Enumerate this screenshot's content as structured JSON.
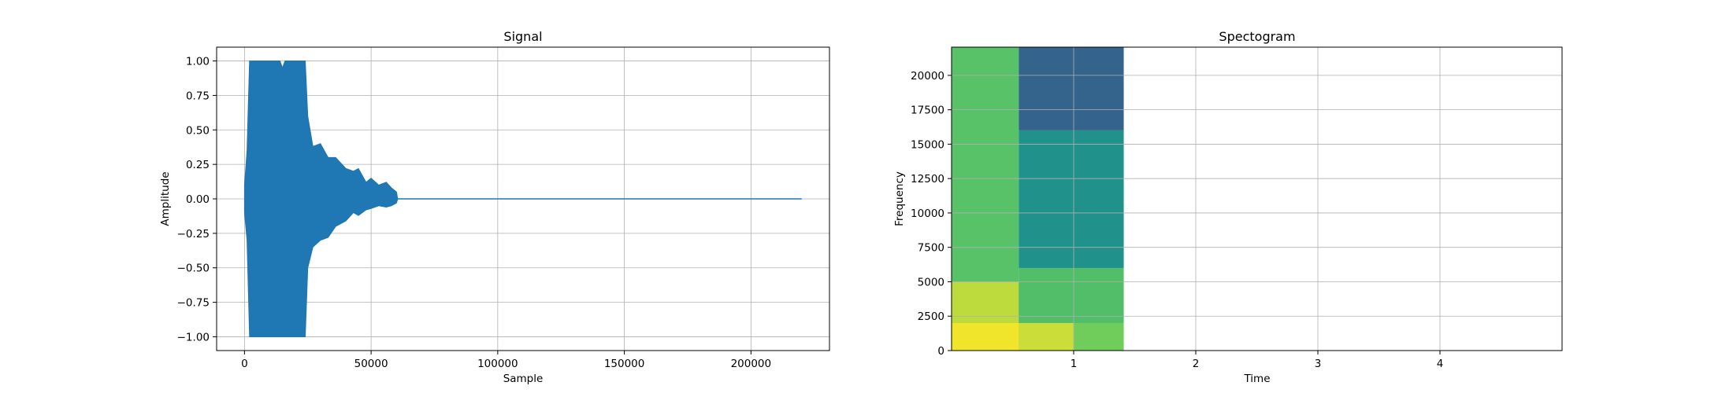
{
  "chart_data": [
    {
      "type": "line",
      "title": "Signal",
      "xlabel": "Sample",
      "ylabel": "Amplitude",
      "xlim": [
        -11000,
        231000
      ],
      "ylim": [
        -1.1,
        1.1
      ],
      "xticks": [
        0,
        50000,
        100000,
        150000,
        200000
      ],
      "xtick_labels": [
        "0",
        "50000",
        "100000",
        "150000",
        "200000"
      ],
      "yticks": [
        -1.0,
        -0.75,
        -0.5,
        -0.25,
        0.0,
        0.25,
        0.5,
        0.75,
        1.0
      ],
      "ytick_labels": [
        "−1.00",
        "−0.75",
        "−0.50",
        "−0.25",
        "0.00",
        "0.25",
        "0.50",
        "0.75",
        "1.00"
      ],
      "grid": true,
      "color": "#1f77b4",
      "series": [
        {
          "x": [
            0,
            1000,
            2000,
            5000,
            10000,
            14000,
            15000,
            16000,
            20000,
            24000,
            25000,
            27000,
            30000,
            33000,
            36000,
            40000,
            43000,
            45000,
            48000,
            50000,
            53000,
            56000,
            58000,
            60000,
            60500,
            100000,
            150000,
            200000,
            220000
          ],
          "upper": [
            0.1,
            0.35,
            1.0,
            1.0,
            1.0,
            1.0,
            0.95,
            1.0,
            1.0,
            1.0,
            0.6,
            0.38,
            0.4,
            0.3,
            0.3,
            0.22,
            0.2,
            0.22,
            0.12,
            0.15,
            0.1,
            0.12,
            0.08,
            0.05,
            0.0,
            0.0,
            0.0,
            0.0,
            0.0
          ],
          "lower": [
            -0.1,
            -0.3,
            -1.0,
            -1.0,
            -1.0,
            -1.0,
            -1.0,
            -1.0,
            -1.0,
            -1.0,
            -0.5,
            -0.35,
            -0.3,
            -0.28,
            -0.2,
            -0.16,
            -0.1,
            -0.12,
            -0.08,
            -0.07,
            -0.05,
            -0.06,
            -0.05,
            -0.03,
            0.0,
            0.0,
            0.0,
            0.0,
            0.0
          ]
        }
      ]
    },
    {
      "type": "heatmap",
      "title": "Spectogram",
      "xlabel": "Time",
      "ylabel": "Frequency",
      "xlim": [
        0,
        5.0
      ],
      "ylim": [
        0,
        22050
      ],
      "xticks": [
        1,
        2,
        3,
        4
      ],
      "xtick_labels": [
        "1",
        "2",
        "3",
        "4"
      ],
      "yticks": [
        0,
        2500,
        5000,
        7500,
        10000,
        12500,
        15000,
        17500,
        20000
      ],
      "ytick_labels": [
        "0",
        "2500",
        "5000",
        "7500",
        "10000",
        "12500",
        "15000",
        "17500",
        "20000"
      ],
      "grid": true,
      "colormap": "viridis",
      "data_extent_time": [
        0,
        1.41
      ],
      "regions": [
        {
          "t0": 0.0,
          "t1": 0.55,
          "f0": 0,
          "f1": 22050,
          "level": 0.72
        },
        {
          "t0": 0.0,
          "t1": 0.55,
          "f0": 0,
          "f1": 5000,
          "level": 0.9
        },
        {
          "t0": 0.0,
          "t1": 0.55,
          "f0": 0,
          "f1": 2000,
          "level": 0.98
        },
        {
          "t0": 0.55,
          "t1": 1.41,
          "f0": 16000,
          "f1": 22050,
          "level": 0.32
        },
        {
          "t0": 0.55,
          "t1": 1.41,
          "f0": 6000,
          "f1": 16000,
          "level": 0.5
        },
        {
          "t0": 0.55,
          "t1": 1.41,
          "f0": 2000,
          "f1": 6000,
          "level": 0.7
        },
        {
          "t0": 0.55,
          "t1": 1.0,
          "f0": 0,
          "f1": 2000,
          "level": 0.92
        },
        {
          "t0": 1.0,
          "t1": 1.41,
          "f0": 0,
          "f1": 2000,
          "level": 0.78
        }
      ]
    }
  ]
}
